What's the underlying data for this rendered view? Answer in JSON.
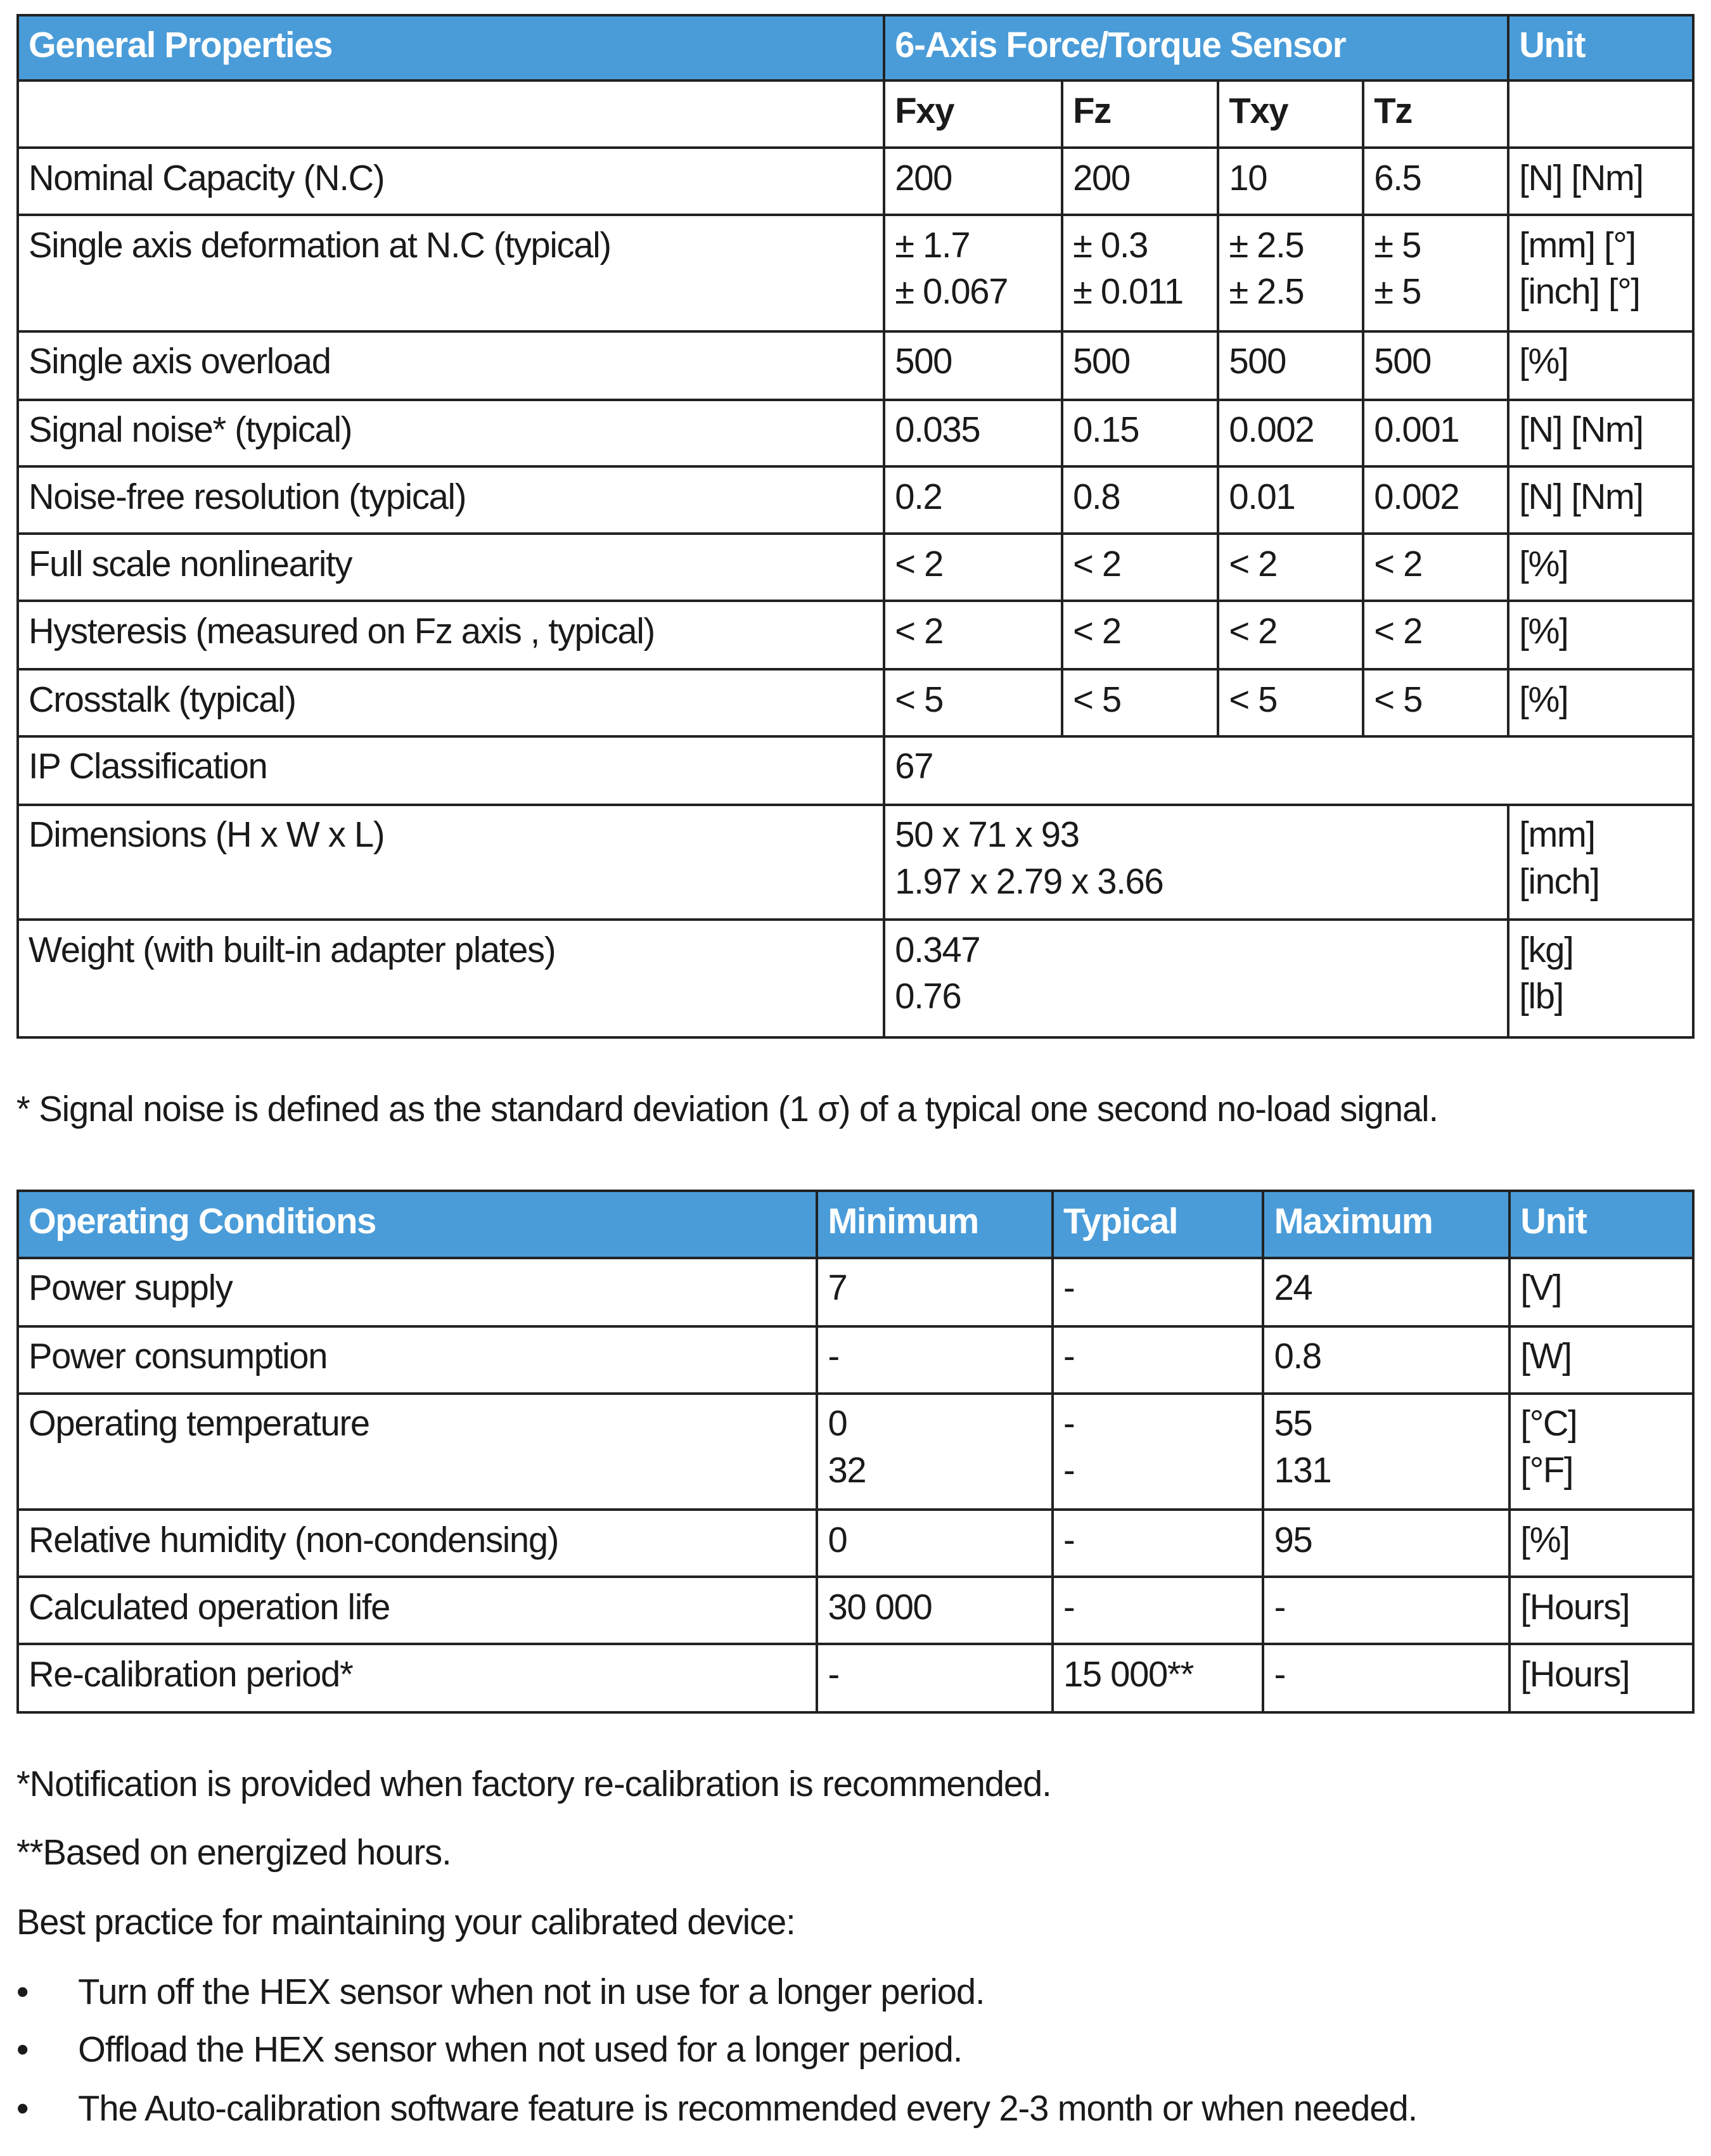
{
  "general": {
    "headers": [
      "General Properties",
      "6-Axis Force/Torque Sensor",
      "Unit"
    ],
    "axes": [
      "Fxy",
      "Fz",
      "Txy",
      "Tz"
    ],
    "rows": [
      {
        "label": "Nominal Capacity (N.C)",
        "values": [
          "200",
          "200",
          "10",
          "6.5"
        ],
        "unit": "[N] [Nm]"
      },
      {
        "label": "Single axis deformation at N.C (typical)",
        "values": [
          "± 1.7\n± 0.067",
          "± 0.3\n± 0.011",
          "± 2.5\n± 2.5",
          "± 5\n± 5"
        ],
        "unit": "[mm] [°]\n[inch] [°]"
      },
      {
        "label": "Single axis overload",
        "values": [
          "500",
          "500",
          "500",
          "500"
        ],
        "unit": "[%]"
      },
      {
        "label": "Signal noise* (typical)",
        "values": [
          "0.035",
          "0.15",
          "0.002",
          "0.001"
        ],
        "unit": "[N] [Nm]"
      },
      {
        "label": "Noise-free resolution (typical)",
        "values": [
          "0.2",
          "0.8",
          "0.01",
          "0.002"
        ],
        "unit": "[N] [Nm]"
      },
      {
        "label": "Full scale nonlinearity",
        "values": [
          "< 2",
          "< 2",
          "< 2",
          "< 2"
        ],
        "unit": "[%]"
      },
      {
        "label": "Hysteresis (measured on Fz axis , typical)",
        "values": [
          "< 2",
          "< 2",
          "< 2",
          "< 2"
        ],
        "unit": "[%]"
      },
      {
        "label": "Crosstalk (typical)",
        "values": [
          "< 5",
          "< 5",
          "< 5",
          "< 5"
        ],
        "unit": "[%]"
      }
    ],
    "ip": {
      "label": "IP Classification",
      "value": "67"
    },
    "dimensions": {
      "label": "Dimensions (H x W x L)",
      "value": "50 x 71 x 93\n1.97 x 2.79 x 3.66",
      "unit": "[mm]\n[inch]"
    },
    "weight": {
      "label": "Weight (with built-in adapter plates)",
      "value": "0.347\n0.76",
      "unit": "[kg]\n[lb]"
    }
  },
  "footnote_noise": "* Signal noise is defined as the standard deviation (1 σ) of a typical one second no-load signal.",
  "operating": {
    "headers": [
      "Operating Conditions",
      "Minimum",
      "Typical",
      "Maximum",
      "Unit"
    ],
    "rows": [
      {
        "label": "Power supply",
        "cells": [
          "7",
          "-",
          "24",
          "[V]"
        ]
      },
      {
        "label": "Power consumption",
        "cells": [
          "-",
          "-",
          "0.8",
          "[W]"
        ]
      },
      {
        "label": "Operating temperature",
        "cells": [
          "0\n32",
          "-\n-",
          "55\n131",
          "[°C]\n[°F]"
        ]
      },
      {
        "label": "Relative humidity (non-condensing)",
        "cells": [
          "0",
          "-",
          "95",
          "[%]"
        ]
      },
      {
        "label": "Calculated operation life",
        "cells": [
          "30 000",
          "-",
          "-",
          "[Hours]"
        ]
      },
      {
        "label": "Re-calibration period*",
        "cells": [
          "-",
          "15 000**",
          "-",
          "[Hours]"
        ]
      }
    ]
  },
  "notes": [
    "*Notification is provided when factory re-calibration is recommended.",
    "**Based on energized hours.",
    "Best practice for maintaining your calibrated device:"
  ],
  "bullets": [
    "Turn off the HEX sensor when not in use for a longer period.",
    "Offload the HEX sensor when not used for a longer period.",
    "The Auto-calibration software feature is recommended every 2-3 month or when needed."
  ],
  "bullet_symbol": "•",
  "colors": {
    "header_bg": "#4a9cd9",
    "header_text": "#ffffff"
  }
}
